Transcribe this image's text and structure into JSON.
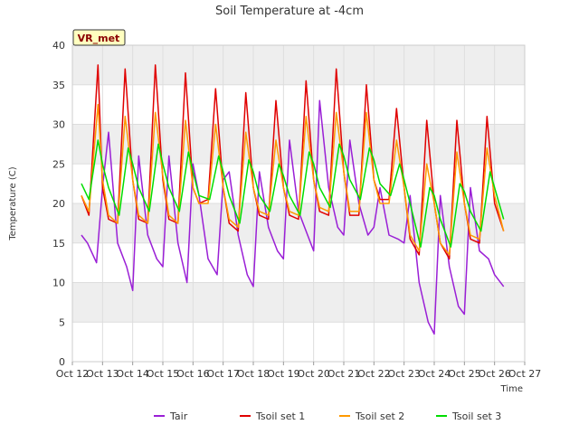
{
  "chart_data": {
    "type": "line",
    "title": "Soil Temperature at -4cm",
    "xlabel": "Time",
    "ylabel": "Temperature (C)",
    "station_tag": "VR_met",
    "xlim": [
      12,
      27
    ],
    "ylim": [
      0,
      40
    ],
    "x_tick_values": [
      12,
      13,
      14,
      15,
      16,
      17,
      18,
      19,
      20,
      21,
      22,
      23,
      24,
      25,
      26,
      27
    ],
    "x_tick_labels": [
      "Oct 12",
      "Oct 13",
      "Oct 14",
      "Oct 15",
      "Oct 16",
      "Oct 17",
      "Oct 18",
      "Oct 19",
      "Oct 20",
      "Oct 21",
      "Oct 22",
      "Oct 23",
      "Oct 24",
      "Oct 25",
      "Oct 26",
      "Oct 27"
    ],
    "y_tick_values": [
      0,
      5,
      10,
      15,
      20,
      25,
      30,
      35,
      40
    ],
    "y_tick_labels": [
      "0",
      "5",
      "10",
      "15",
      "20",
      "25",
      "30",
      "35",
      "40"
    ],
    "grid": true,
    "background_bands": true,
    "legend_position": "bottom-center",
    "series": [
      {
        "name": "Tair",
        "color": "#9a1fd6",
        "x": [
          12.3,
          12.5,
          12.8,
          13.0,
          13.2,
          13.5,
          13.8,
          14.0,
          14.2,
          14.5,
          14.8,
          15.0,
          15.2,
          15.5,
          15.8,
          16.0,
          16.2,
          16.5,
          16.8,
          17.0,
          17.2,
          17.5,
          17.8,
          18.0,
          18.2,
          18.5,
          18.8,
          19.0,
          19.2,
          19.5,
          19.8,
          20.0,
          20.2,
          20.5,
          20.8,
          21.0,
          21.2,
          21.5,
          21.8,
          22.0,
          22.2,
          22.5,
          22.8,
          23.0,
          23.2,
          23.5,
          23.8,
          24.0,
          24.2,
          24.5,
          24.8,
          25.0,
          25.2,
          25.5,
          25.8,
          26.0,
          26.3
        ],
        "y": [
          16,
          15,
          12.5,
          22,
          29,
          15,
          12,
          9,
          26,
          16,
          13,
          12,
          26,
          15,
          10,
          25,
          21,
          13,
          11,
          23,
          24,
          16,
          11,
          9.5,
          24,
          17,
          14,
          13,
          28,
          19,
          16,
          14,
          33,
          22,
          17,
          16,
          28,
          20,
          16,
          17,
          22,
          16,
          15.5,
          15,
          21,
          10,
          5,
          3.5,
          21,
          12,
          7,
          6,
          22,
          14,
          13,
          11,
          9.5
        ]
      },
      {
        "name": "Tsoil set 1",
        "color": "#e00000",
        "x": [
          12.3,
          12.55,
          12.85,
          13.0,
          13.2,
          13.5,
          13.75,
          14.0,
          14.2,
          14.5,
          14.75,
          15.0,
          15.2,
          15.5,
          15.75,
          16.0,
          16.2,
          16.5,
          16.75,
          17.0,
          17.2,
          17.5,
          17.75,
          18.0,
          18.2,
          18.5,
          18.75,
          19.0,
          19.2,
          19.5,
          19.75,
          20.0,
          20.2,
          20.5,
          20.75,
          21.0,
          21.2,
          21.5,
          21.75,
          22.0,
          22.2,
          22.5,
          22.75,
          23.0,
          23.2,
          23.5,
          23.75,
          24.0,
          24.2,
          24.5,
          24.75,
          25.0,
          25.2,
          25.5,
          25.75,
          26.0,
          26.3
        ],
        "y": [
          21,
          18.5,
          37.5,
          22,
          18,
          17.5,
          37,
          23,
          18,
          17.5,
          37.5,
          23,
          18,
          17.5,
          36.5,
          22,
          20,
          20.5,
          34.5,
          22,
          17.5,
          16.5,
          34,
          22,
          18.5,
          18,
          33,
          22,
          18.5,
          18,
          35.5,
          23,
          19,
          18.5,
          37,
          24,
          18.5,
          18.5,
          35,
          23,
          20.5,
          20.5,
          32,
          22,
          15.5,
          13.5,
          30.5,
          20,
          15,
          13,
          30.5,
          20,
          15.5,
          15,
          31,
          20,
          16.5
        ]
      },
      {
        "name": "Tsoil set 2",
        "color": "#ff9900",
        "x": [
          12.3,
          12.55,
          12.85,
          13.0,
          13.2,
          13.5,
          13.75,
          14.0,
          14.2,
          14.5,
          14.75,
          15.0,
          15.2,
          15.5,
          15.75,
          16.0,
          16.2,
          16.5,
          16.75,
          17.0,
          17.2,
          17.5,
          17.75,
          18.0,
          18.2,
          18.5,
          18.75,
          19.0,
          19.2,
          19.5,
          19.75,
          20.0,
          20.2,
          20.5,
          20.75,
          21.0,
          21.2,
          21.5,
          21.75,
          22.0,
          22.2,
          22.5,
          22.75,
          23.0,
          23.2,
          23.5,
          23.75,
          24.0,
          24.2,
          24.5,
          24.75,
          25.0,
          25.2,
          25.5,
          25.75,
          26.0,
          26.3
        ],
        "y": [
          21,
          19,
          32.5,
          23,
          18.5,
          17.5,
          31,
          23,
          18.5,
          17.5,
          31.5,
          23.5,
          18.5,
          17.5,
          30.5,
          22,
          20,
          20,
          30,
          22,
          18,
          17,
          29,
          22,
          19,
          18.5,
          28,
          22,
          19,
          18.5,
          31,
          23,
          19.5,
          19,
          31.5,
          24,
          19,
          19,
          31.5,
          23,
          20,
          20,
          28,
          22,
          16,
          14,
          25,
          20,
          15,
          13.5,
          26.5,
          20,
          16,
          15.5,
          27,
          21,
          16.5
        ]
      },
      {
        "name": "Tsoil set 3",
        "color": "#00dd00",
        "x": [
          12.3,
          12.55,
          12.85,
          13.0,
          13.2,
          13.55,
          13.85,
          14.0,
          14.2,
          14.55,
          14.85,
          15.0,
          15.2,
          15.55,
          15.85,
          16.0,
          16.2,
          16.55,
          16.85,
          17.0,
          17.2,
          17.55,
          17.85,
          18.0,
          18.2,
          18.55,
          18.85,
          19.0,
          19.2,
          19.55,
          19.85,
          20.0,
          20.2,
          20.55,
          20.85,
          21.0,
          21.2,
          21.55,
          21.85,
          22.0,
          22.2,
          22.55,
          22.85,
          23.0,
          23.2,
          23.55,
          23.85,
          24.0,
          24.2,
          24.55,
          24.85,
          25.0,
          25.2,
          25.55,
          25.85,
          26.0,
          26.3
        ],
        "y": [
          22.5,
          20.5,
          28,
          25,
          22,
          18.5,
          27,
          25,
          22,
          19,
          27.5,
          25,
          22,
          19,
          26.5,
          24,
          21,
          20.5,
          26,
          24,
          21,
          17.5,
          25.5,
          24,
          21,
          19,
          25,
          23.5,
          21,
          18.5,
          26.5,
          25,
          22,
          19.5,
          27.5,
          26,
          23,
          20.5,
          27,
          25.5,
          22.5,
          21,
          25,
          23,
          20,
          14.5,
          22,
          21,
          18,
          14.5,
          22.5,
          21.5,
          19,
          16.5,
          24,
          22,
          18
        ]
      }
    ]
  }
}
